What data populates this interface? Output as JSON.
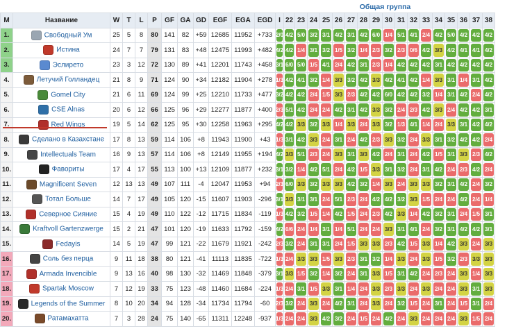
{
  "group_title": "Общая группа",
  "headers": {
    "m": "М",
    "name": "Название",
    "w": "W",
    "t": "T",
    "l": "L",
    "p": "P",
    "gf": "GF",
    "ga": "GA",
    "gd": "GD",
    "egf": "EGF",
    "ega": "EGA",
    "egd": "EGD"
  },
  "tour_columns": [
    "I",
    "22",
    "23",
    "24",
    "25",
    "26",
    "27",
    "28",
    "29",
    "30",
    "31",
    "32",
    "33",
    "34",
    "35",
    "36",
    "37",
    "38"
  ],
  "teams": [
    {
      "pos": "1.",
      "zone": "g",
      "name": "Свободный Ум",
      "logo": "#9aa6b2",
      "w": "25",
      "t": "5",
      "l": "8",
      "p": "80",
      "gf": "141",
      "ga": "82",
      "gd": "+59",
      "egf": "12685",
      "ega": "11952",
      "egd": "+733"
    },
    {
      "pos": "2.",
      "zone": "g",
      "name": "Истина",
      "logo": "#c0392b",
      "w": "24",
      "t": "7",
      "l": "7",
      "p": "79",
      "gf": "131",
      "ga": "83",
      "gd": "+48",
      "egf": "12475",
      "ega": "11993",
      "egd": "+482"
    },
    {
      "pos": "3.",
      "zone": "g",
      "name": "Эслирето",
      "logo": "#5a8ad0",
      "w": "23",
      "t": "3",
      "l": "12",
      "p": "72",
      "gf": "130",
      "ga": "89",
      "gd": "+41",
      "egf": "12201",
      "ega": "11743",
      "egd": "+458"
    },
    {
      "pos": "4.",
      "zone": "w",
      "name": "Летучий Голландец",
      "logo": "#7c5b3a",
      "w": "21",
      "t": "8",
      "l": "9",
      "p": "71",
      "gf": "124",
      "ga": "90",
      "gd": "+34",
      "egf": "12182",
      "ega": "11904",
      "egd": "+278"
    },
    {
      "pos": "5.",
      "zone": "w",
      "name": "Gomel City",
      "logo": "#4a8a3a",
      "w": "21",
      "t": "6",
      "l": "11",
      "p": "69",
      "gf": "124",
      "ga": "99",
      "gd": "+25",
      "egf": "12210",
      "ega": "11733",
      "egd": "+477"
    },
    {
      "pos": "6.",
      "zone": "w",
      "name": "CSE Alnas",
      "logo": "#2e6fa8",
      "w": "20",
      "t": "6",
      "l": "12",
      "p": "66",
      "gf": "125",
      "ga": "96",
      "gd": "+29",
      "egf": "12277",
      "ega": "11877",
      "egd": "+400"
    },
    {
      "pos": "7.",
      "zone": "w",
      "name": "Red Wings",
      "logo": "#b0302a",
      "w": "19",
      "t": "5",
      "l": "14",
      "p": "62",
      "gf": "125",
      "ga": "95",
      "gd": "+30",
      "egf": "12258",
      "ega": "11963",
      "egd": "+295"
    },
    {
      "pos": "8.",
      "zone": "w",
      "name": "Сделано в Казахстане",
      "logo": "#3a3a3a",
      "w": "17",
      "t": "8",
      "l": "13",
      "p": "59",
      "gf": "114",
      "ga": "106",
      "gd": "+8",
      "egf": "11943",
      "ega": "11900",
      "egd": "+43"
    },
    {
      "pos": "9.",
      "zone": "w",
      "name": "Intellectuals Team",
      "logo": "#444444",
      "w": "16",
      "t": "9",
      "l": "13",
      "p": "57",
      "gf": "114",
      "ga": "106",
      "gd": "+8",
      "egf": "12149",
      "ega": "11955",
      "egd": "+194"
    },
    {
      "pos": "10.",
      "zone": "w",
      "name": "Фавориты",
      "logo": "#222222",
      "w": "17",
      "t": "4",
      "l": "17",
      "p": "55",
      "gf": "113",
      "ga": "100",
      "gd": "+13",
      "egf": "12109",
      "ega": "11877",
      "egd": "+232"
    },
    {
      "pos": "11.",
      "zone": "w",
      "name": "Magnificent Seven",
      "logo": "#6b4a2a",
      "w": "12",
      "t": "13",
      "l": "13",
      "p": "49",
      "gf": "107",
      "ga": "111",
      "gd": "-4",
      "egf": "12047",
      "ega": "11953",
      "egd": "+94"
    },
    {
      "pos": "12.",
      "zone": "w",
      "name": "Тотал Больше",
      "logo": "#555555",
      "w": "14",
      "t": "7",
      "l": "17",
      "p": "49",
      "gf": "105",
      "ga": "120",
      "gd": "-15",
      "egf": "11607",
      "ega": "11903",
      "egd": "-296"
    },
    {
      "pos": "13.",
      "zone": "w",
      "name": "Северное Сияние",
      "logo": "#b0302a",
      "w": "15",
      "t": "4",
      "l": "19",
      "p": "49",
      "gf": "110",
      "ga": "122",
      "gd": "-12",
      "egf": "11715",
      "ega": "11834",
      "egd": "-119"
    },
    {
      "pos": "14.",
      "zone": "w",
      "name": "Kraftvoll Gartenzwerge",
      "logo": "#3a7a3a",
      "w": "15",
      "t": "2",
      "l": "21",
      "p": "47",
      "gf": "101",
      "ga": "120",
      "gd": "-19",
      "egf": "11633",
      "ega": "11792",
      "egd": "-159"
    },
    {
      "pos": "15.",
      "zone": "w",
      "name": "Fedayis",
      "logo": "#8a2a2a",
      "w": "14",
      "t": "5",
      "l": "19",
      "p": "47",
      "gf": "99",
      "ga": "121",
      "gd": "-22",
      "egf": "11679",
      "ega": "11921",
      "egd": "-242"
    },
    {
      "pos": "16.",
      "zone": "r",
      "name": "Соль без перца",
      "logo": "#444444",
      "w": "9",
      "t": "11",
      "l": "18",
      "p": "38",
      "gf": "80",
      "ga": "121",
      "gd": "-41",
      "egf": "11113",
      "ega": "11835",
      "egd": "-722"
    },
    {
      "pos": "17.",
      "zone": "r",
      "name": "Armada Invencible",
      "logo": "#b0302a",
      "w": "9",
      "t": "13",
      "l": "16",
      "p": "40",
      "gf": "98",
      "ga": "130",
      "gd": "-32",
      "egf": "11469",
      "ega": "11848",
      "egd": "-379"
    },
    {
      "pos": "18.",
      "zone": "r",
      "name": "Spartak Moscow",
      "logo": "#c0392b",
      "w": "7",
      "t": "12",
      "l": "19",
      "p": "33",
      "gf": "75",
      "ga": "123",
      "gd": "-48",
      "egf": "11460",
      "ega": "11684",
      "egd": "-224"
    },
    {
      "pos": "19.",
      "zone": "r",
      "name": "Legends of the Summer",
      "logo": "#2a2a2a",
      "w": "8",
      "t": "10",
      "l": "20",
      "p": "34",
      "gf": "94",
      "ga": "128",
      "gd": "-34",
      "egf": "11734",
      "ega": "11794",
      "egd": "-60"
    },
    {
      "pos": "20.",
      "zone": "r",
      "name": "Ратамахатта",
      "logo": "#7a4a2a",
      "w": "7",
      "t": "3",
      "l": "28",
      "p": "24",
      "gf": "75",
      "ga": "140",
      "gd": "-65",
      "egf": "11311",
      "ega": "12248",
      "egd": "-937"
    }
  ],
  "matrix": [
    [
      "2/0",
      "4/2",
      "5/0",
      "3/2",
      "3/1",
      "4/2",
      "3/1",
      "4/2",
      "6/0",
      "1/4",
      "5/1",
      "4/1",
      "2/4",
      "4/2",
      "5/0",
      "4/2",
      "4/2",
      "4/2"
    ],
    [
      "4/2",
      "4/2",
      "1/4",
      "3/1",
      "3/2",
      "1/5",
      "3/2",
      "1/4",
      "2/3",
      "3/2",
      "2/3",
      "0/6",
      "4/2",
      "3/3",
      "4/2",
      "4/1",
      "4/1",
      "4/2"
    ],
    [
      "3/1",
      "6/0",
      "5/0",
      "1/5",
      "4/1",
      "2/4",
      "4/2",
      "3/1",
      "2/3",
      "1/4",
      "4/2",
      "4/2",
      "4/2",
      "3/1",
      "4/2",
      "4/2",
      "4/2",
      "4/2"
    ],
    [
      "1/3",
      "4/2",
      "4/1",
      "3/2",
      "1/4",
      "3/3",
      "3/2",
      "4/2",
      "3/3",
      "4/2",
      "4/1",
      "4/2",
      "1/4",
      "3/3",
      "3/1",
      "1/4",
      "3/1",
      "4/2"
    ],
    [
      "3/2",
      "4/2",
      "4/2",
      "2/4",
      "1/5",
      "3/3",
      "2/3",
      "4/2",
      "4/2",
      "6/0",
      "4/2",
      "4/2",
      "3/2",
      "1/4",
      "3/1",
      "4/2",
      "2/4",
      "4/2"
    ],
    [
      "2/3",
      "5/1",
      "4/2",
      "2/4",
      "2/4",
      "4/2",
      "3/1",
      "4/2",
      "3/3",
      "3/2",
      "2/4",
      "2/3",
      "4/2",
      "3/3",
      "2/4",
      "4/2",
      "4/2",
      "3/1"
    ],
    [
      "4/2",
      "4/2",
      "3/3",
      "3/2",
      "3/3",
      "1/4",
      "3/3",
      "2/4",
      "3/3",
      "3/2",
      "1/3",
      "4/1",
      "1/4",
      "2/4",
      "3/3",
      "3/1",
      "4/2",
      "4/2"
    ],
    [
      "1/3",
      "3/1",
      "4/2",
      "3/3",
      "2/4",
      "3/1",
      "2/4",
      "4/2",
      "2/3",
      "3/3",
      "3/2",
      "2/4",
      "3/3",
      "3/1",
      "3/2",
      "4/2",
      "4/2",
      "2/4"
    ],
    [
      "4/2",
      "3/3",
      "5/1",
      "2/3",
      "2/4",
      "3/3",
      "3/1",
      "3/3",
      "4/2",
      "2/4",
      "3/1",
      "2/4",
      "4/2",
      "1/5",
      "3/1",
      "3/3",
      "2/3",
      "4/2"
    ],
    [
      "3/1",
      "3/2",
      "1/4",
      "4/2",
      "5/1",
      "2/4",
      "4/2",
      "1/5",
      "3/3",
      "3/1",
      "3/2",
      "2/4",
      "3/1",
      "4/2",
      "2/4",
      "2/3",
      "4/2",
      "2/4"
    ],
    [
      "2/3",
      "6/0",
      "3/3",
      "3/2",
      "3/3",
      "3/3",
      "4/2",
      "3/2",
      "1/4",
      "3/3",
      "2/4",
      "3/3",
      "3/3",
      "3/2",
      "3/1",
      "4/2",
      "2/4",
      "3/2"
    ],
    [
      "3/1",
      "3/3",
      "3/1",
      "3/1",
      "2/4",
      "5/1",
      "2/3",
      "2/4",
      "4/2",
      "4/2",
      "3/2",
      "3/3",
      "1/5",
      "2/4",
      "2/4",
      "4/2",
      "2/4",
      "1/4"
    ],
    [
      "1/3",
      "4/2",
      "3/2",
      "1/5",
      "1/4",
      "4/2",
      "1/5",
      "2/4",
      "2/3",
      "4/2",
      "3/3",
      "1/4",
      "4/2",
      "3/2",
      "3/1",
      "2/4",
      "1/5",
      "3/1"
    ],
    [
      "4/2",
      "0/6",
      "2/4",
      "1/4",
      "3/1",
      "1/4",
      "5/1",
      "2/4",
      "2/4",
      "3/3",
      "3/1",
      "4/1",
      "2/4",
      "3/2",
      "3/1",
      "4/2",
      "4/2",
      "3/1"
    ],
    [
      "2/3",
      "3/2",
      "2/4",
      "3/1",
      "3/1",
      "2/4",
      "1/5",
      "3/3",
      "3/3",
      "2/3",
      "4/2",
      "1/5",
      "3/3",
      "1/4",
      "4/2",
      "3/3",
      "2/4",
      "3/3"
    ],
    [
      "1/3",
      "2/4",
      "3/3",
      "3/3",
      "1/5",
      "3/3",
      "2/3",
      "3/1",
      "3/2",
      "1/4",
      "3/3",
      "2/4",
      "3/3",
      "1/5",
      "3/2",
      "2/3",
      "3/3",
      "3/3"
    ],
    [
      "3/1",
      "3/3",
      "1/5",
      "3/2",
      "1/4",
      "3/2",
      "2/4",
      "3/1",
      "3/3",
      "1/5",
      "3/1",
      "4/2",
      "2/4",
      "2/3",
      "2/4",
      "3/3",
      "1/4",
      "3/3"
    ],
    [
      "1/3",
      "2/4",
      "3/1",
      "1/5",
      "3/3",
      "3/1",
      "1/4",
      "2/4",
      "3/3",
      "2/3",
      "3/3",
      "2/4",
      "3/3",
      "2/4",
      "2/4",
      "3/3",
      "3/1",
      "3/3"
    ],
    [
      "2/3",
      "3/2",
      "2/4",
      "3/3",
      "2/4",
      "4/2",
      "3/1",
      "2/4",
      "3/3",
      "2/4",
      "3/2",
      "1/5",
      "2/4",
      "3/1",
      "2/4",
      "1/5",
      "3/1",
      "2/4"
    ],
    [
      "1/3",
      "2/4",
      "2/4",
      "3/3",
      "4/2",
      "3/2",
      "2/4",
      "1/5",
      "2/4",
      "4/2",
      "2/4",
      "3/3",
      "2/4",
      "2/4",
      "2/4",
      "3/3",
      "1/5",
      "2/4"
    ]
  ],
  "colors": {
    "win": "#62ad3e",
    "draw": "#d3d344",
    "loss": "#ea6b6b",
    "zone_green": "#8fd28a",
    "zone_red": "#f3a9ba",
    "link": "#1f5fa0"
  }
}
